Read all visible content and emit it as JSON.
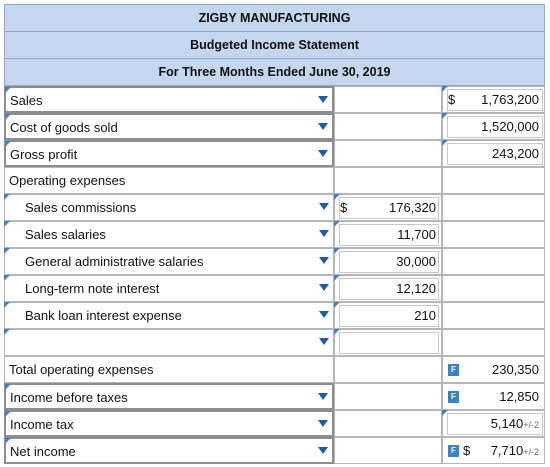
{
  "header": {
    "company": "ZIGBY MANUFACTURING",
    "statement": "Budgeted Income Statement",
    "period": "For Three Months Ended June 30, 2019"
  },
  "rows": {
    "sales": {
      "label": "Sales",
      "currency": "$",
      "value": "1,763,200"
    },
    "cogs": {
      "label": "Cost of goods sold",
      "value": "1,520,000"
    },
    "gross_profit": {
      "label": "Gross profit",
      "value": "243,200"
    },
    "opex_heading": {
      "label": "Operating expenses"
    },
    "sales_commissions": {
      "label": "Sales commissions",
      "currency": "$",
      "value": "176,320"
    },
    "sales_salaries": {
      "label": "Sales salaries",
      "value": "11,700"
    },
    "gen_admin_salaries": {
      "label": "General administrative salaries",
      "value": "30,000"
    },
    "lt_note_interest": {
      "label": "Long-term note interest",
      "value": "12,120"
    },
    "bank_loan_interest": {
      "label": "Bank loan interest expense",
      "value": "210"
    },
    "blank": {
      "label": ""
    },
    "total_opex": {
      "label": "Total operating expenses",
      "value": "230,350",
      "badge": "F"
    },
    "income_before_taxes": {
      "label": "Income before taxes",
      "value": "12,850",
      "badge": "F"
    },
    "income_tax": {
      "label": "Income tax",
      "value": "5,140",
      "tolerance": "+/-2"
    },
    "net_income": {
      "label": "Net income",
      "currency": "$",
      "value": "7,710",
      "tolerance": "+/-2",
      "badge": "F"
    }
  }
}
